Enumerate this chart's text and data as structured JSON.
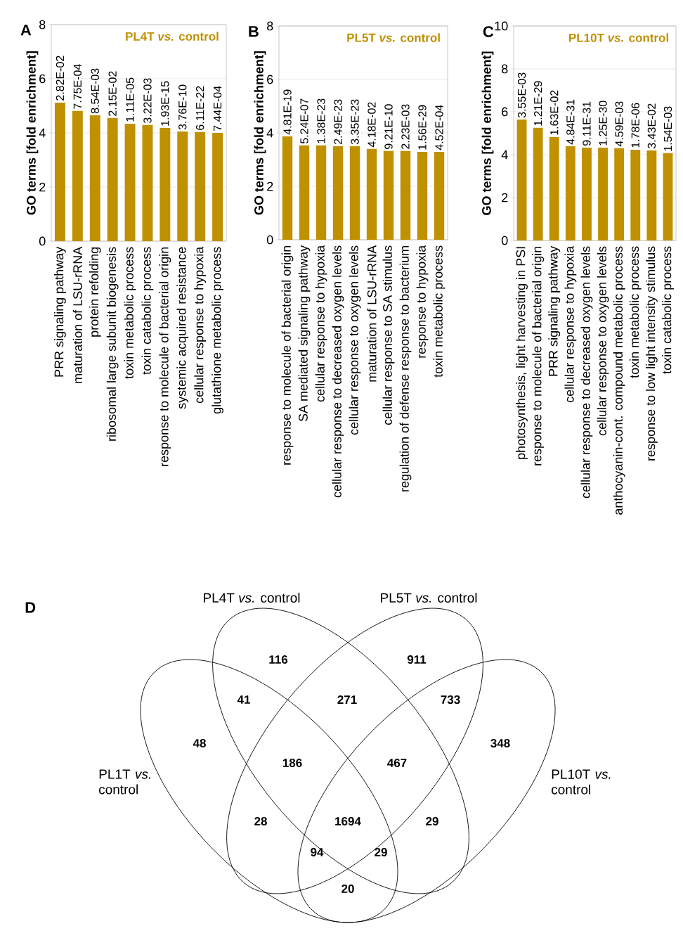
{
  "chart_data": [
    {
      "type": "bar",
      "ylabel": "GO terms [fold enrichment]",
      "ylim": [
        0,
        8
      ],
      "yticks": [
        0,
        2,
        4,
        6,
        8
      ],
      "grid": "y",
      "legend": "top right",
      "categories": [
        "PRR signaling pathway",
        "maturation of LSU-rRNA",
        "protein refolding",
        "ribosomal large subunit biogenesis",
        "toxin metabolic process",
        "toxin catabolic process",
        "response to molecule of bacterial origin",
        "systemic acquired resistance",
        "cellular response to hypoxia",
        "glutathione metabolic process"
      ],
      "series": [
        {
          "name": "PL4T *vs.* control",
          "color": "#bf9000",
          "values": [
            5.12,
            4.81,
            4.65,
            4.55,
            4.34,
            4.29,
            4.18,
            4.05,
            4.03,
            4.0
          ]
        }
      ],
      "annotations": [
        "A",
        {
          "text": "2.82E-02",
          "x": "PRR signaling pathway",
          "y": 5.12
        },
        {
          "text": "7.75E-04",
          "x": "maturation of LSU-rRNA",
          "y": 4.81
        },
        {
          "text": "8.54E-03",
          "x": "protein refolding",
          "y": 4.65
        },
        {
          "text": "2.15E-02",
          "x": "ribosomal large subunit biogenesis",
          "y": 4.55
        },
        {
          "text": "1.11E-05",
          "x": "toxin metabolic process",
          "y": 4.34
        },
        {
          "text": "3.22E-03",
          "x": "toxin catabolic process",
          "y": 4.29
        },
        {
          "text": "1.93E-15",
          "x": "response to molecule of bacterial origin",
          "y": 4.18
        },
        {
          "text": "3.76E-10",
          "x": "systemic acquired resistance",
          "y": 4.05
        },
        {
          "text": "6.11E-22",
          "x": "cellular response to hypoxia",
          "y": 4.03
        },
        {
          "text": "7.44E-04",
          "x": "glutathione metabolic process",
          "y": 4.0
        }
      ]
    },
    {
      "type": "bar",
      "ylabel": "GO terms [fold enrichment]",
      "ylim": [
        0,
        8
      ],
      "yticks": [
        0,
        2,
        4,
        6,
        8
      ],
      "grid": "y",
      "legend": "top right",
      "categories": [
        "response to molecule of bacterial origin",
        "SA mediated signaling pathway",
        "cellular response to hypoxia",
        "cellular response to decreased oxygen levels",
        "cellular response to oxygen levels",
        "maturation of LSU-rRNA",
        "cellular response to SA stimulus",
        "regulation of defense response to bacterium",
        "response to hypoxia",
        "toxin metabolic process"
      ],
      "series": [
        {
          "name": "PL5T *vs.* control",
          "color": "#bf9000",
          "values": [
            3.87,
            3.53,
            3.53,
            3.5,
            3.5,
            3.4,
            3.32,
            3.32,
            3.29,
            3.29
          ]
        }
      ],
      "annotations": [
        "B",
        {
          "text": "4.81E-19",
          "x": "response to molecule of bacterial origin",
          "y": 3.87
        },
        {
          "text": "5.24E-07",
          "x": "SA mediated signaling pathway",
          "y": 3.53
        },
        {
          "text": "1.38E-23",
          "x": "cellular response to hypoxia",
          "y": 3.53
        },
        {
          "text": "2.49E-23",
          "x": "cellular response to decreased oxygen levels",
          "y": 3.5
        },
        {
          "text": "3.35E-23",
          "x": "cellular response to oxygen levels",
          "y": 3.5
        },
        {
          "text": "4.18E-02",
          "x": "maturation of LSU-rRNA",
          "y": 3.4
        },
        {
          "text": "9.21E-10",
          "x": "cellular response to SA stimulus",
          "y": 3.32
        },
        {
          "text": "2.23E-03",
          "x": "regulation of defense response to bacterium",
          "y": 3.32
        },
        {
          "text": "1.56E-29",
          "x": "response to hypoxia",
          "y": 3.29
        },
        {
          "text": "4.52E-04",
          "x": "toxin metabolic process",
          "y": 3.29
        }
      ]
    },
    {
      "type": "bar",
      "ylabel": "GO terms [fold enrichment]",
      "ylim": [
        0,
        10
      ],
      "yticks": [
        0,
        2,
        4,
        6,
        8,
        10
      ],
      "grid": "y",
      "legend": "top right",
      "categories": [
        "photosynthesis, light harvesting in PSI",
        "response to molecule of bacterial origin",
        "PRR signaling pathway",
        "cellular response to hypoxia",
        "cellular response to decreased oxygen levels",
        "cellular response to oxygen levels",
        "anthocyanin-cont. compound metabolic process",
        "toxin metabolic process",
        "response to low light intensity stimulus",
        "toxin catabolic process"
      ],
      "series": [
        {
          "name": "PL10T *vs.* control",
          "color": "#bf9000",
          "values": [
            5.64,
            5.25,
            4.82,
            4.39,
            4.33,
            4.33,
            4.3,
            4.23,
            4.2,
            4.07
          ]
        }
      ],
      "annotations": [
        "C",
        {
          "text": "3.55E-03",
          "x": "photosynthesis, light harvesting in PSI",
          "y": 5.64
        },
        {
          "text": "1.21E-29",
          "x": "response to molecule of bacterial origin",
          "y": 5.25
        },
        {
          "text": "1.63E-02",
          "x": "PRR signaling pathway",
          "y": 4.82
        },
        {
          "text": "4.84E-31",
          "x": "cellular response to hypoxia",
          "y": 4.39
        },
        {
          "text": "9.11E-31",
          "x": "cellular response to decreased oxygen levels",
          "y": 4.33
        },
        {
          "text": "1.25E-30",
          "x": "cellular response to oxygen levels",
          "y": 4.33
        },
        {
          "text": "4.59E-03",
          "x": "anthocyanin-cont. compound metabolic process",
          "y": 4.3
        },
        {
          "text": "1.78E-06",
          "x": "toxin metabolic process",
          "y": 4.23
        },
        {
          "text": "3.43E-02",
          "x": "response to low light intensity stimulus",
          "y": 4.2
        },
        {
          "text": "1.54E-03",
          "x": "toxin catabolic process",
          "y": 4.07
        }
      ]
    },
    {
      "type": "other",
      "annotations": [
        "D",
        "PL4T *vs.* control",
        "PL5T *vs.* control",
        "PL1T *vs.* control",
        "PL10T *vs.* control",
        "116",
        "911",
        "41",
        "271",
        "733",
        "48",
        "186",
        "467",
        "348",
        "28",
        "1694",
        "29",
        "94",
        "29",
        "20"
      ]
    }
  ]
}
